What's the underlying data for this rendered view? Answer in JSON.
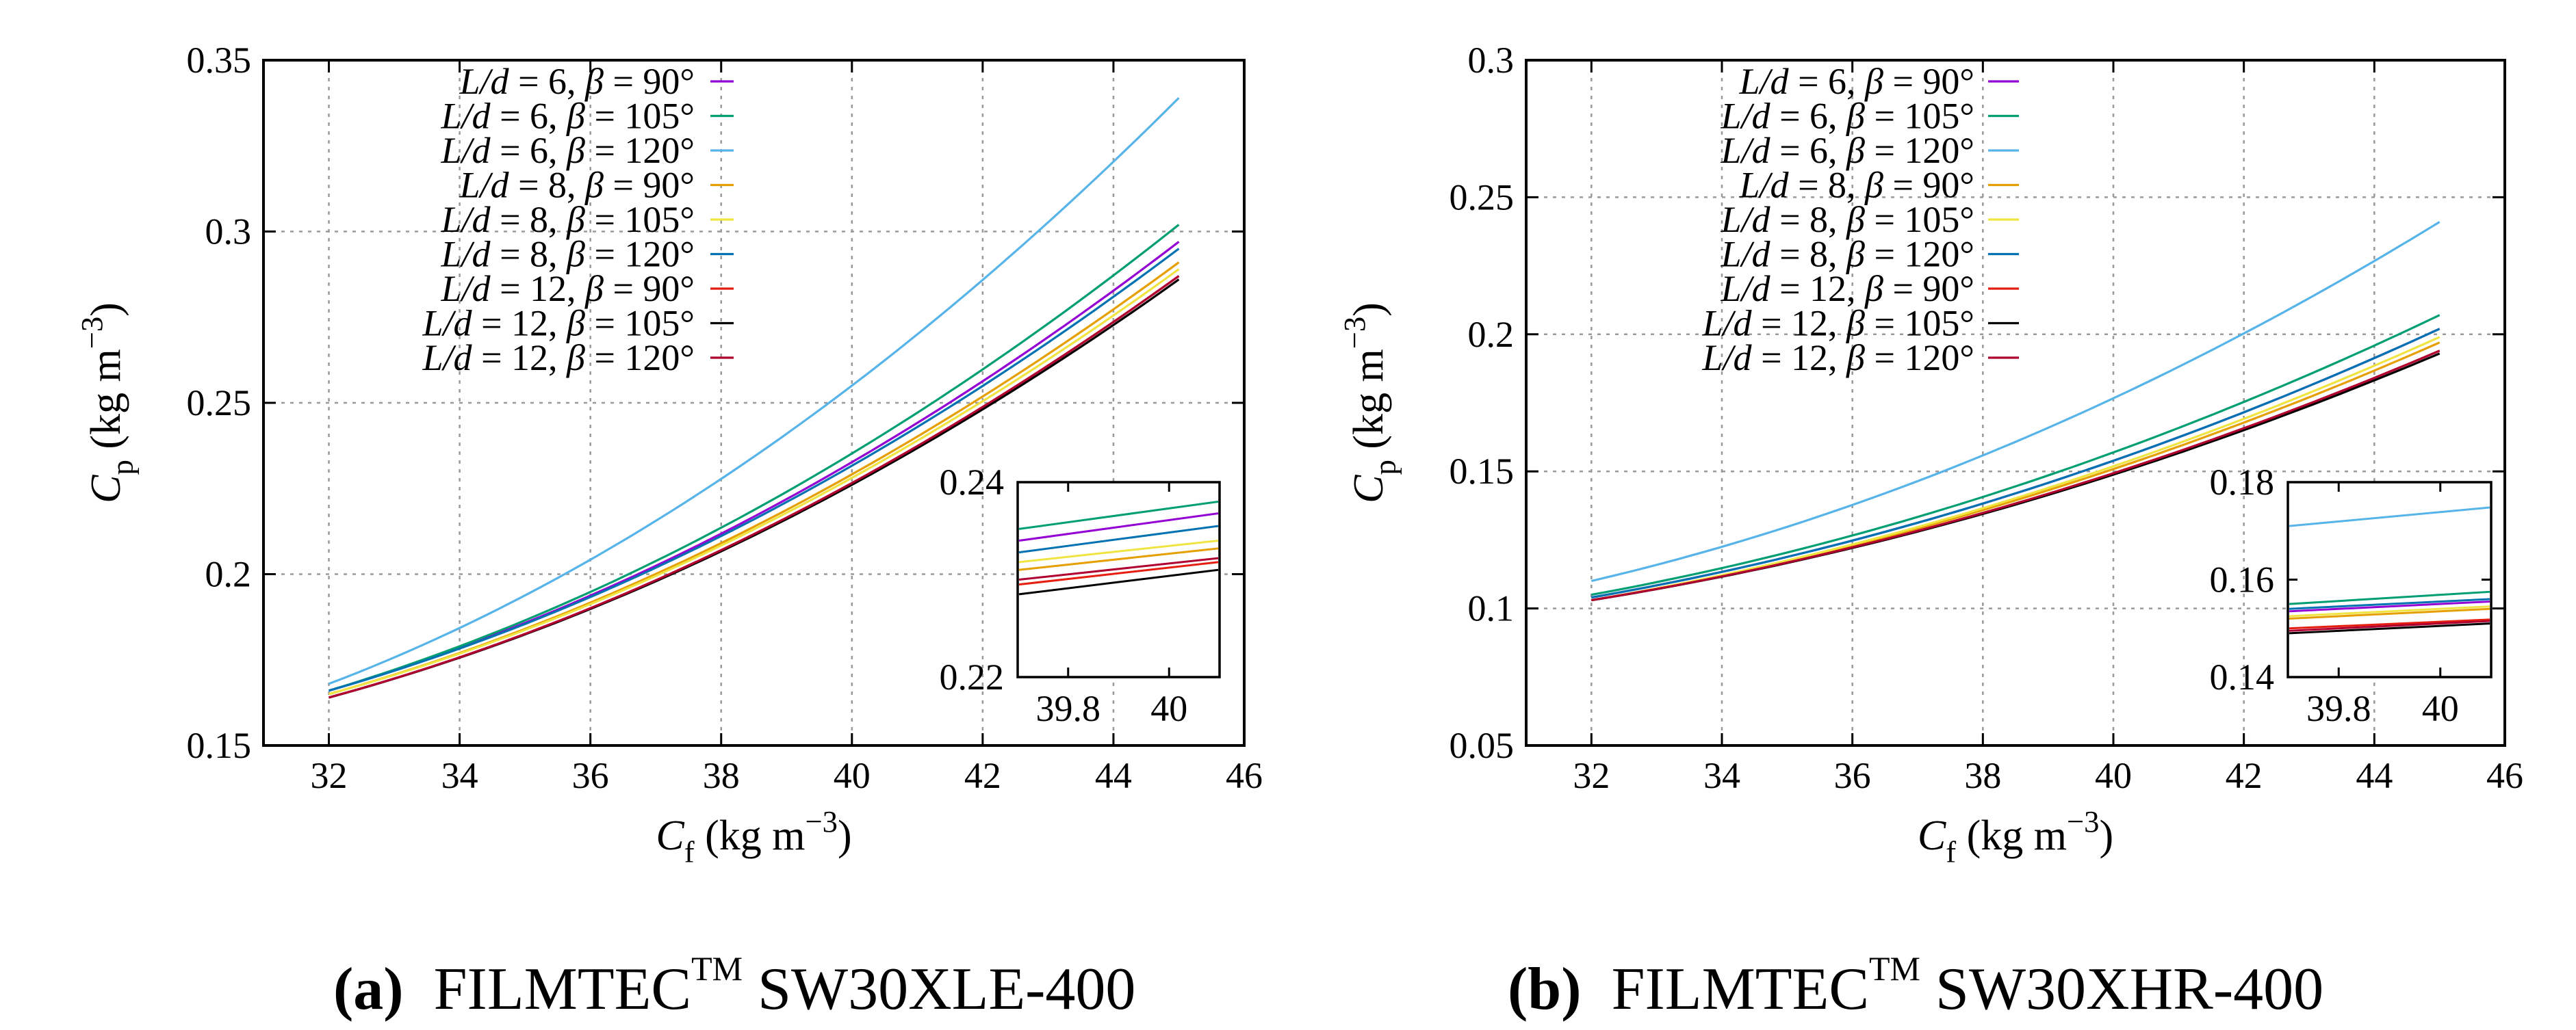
{
  "legend_labels": [
    "L/d = 6, β = 90°",
    "L/d = 6, β = 105°",
    "L/d = 6, β = 120°",
    "L/d = 8, β = 90°",
    "L/d = 8, β = 105°",
    "L/d = 8, β = 120°",
    "L/d = 12, β = 90°",
    "L/d = 12, β = 105°",
    "L/d = 12, β = 120°"
  ],
  "colors": [
    "#9400d3",
    "#009e73",
    "#56b4e9",
    "#e69f00",
    "#f0e442",
    "#0072b2",
    "#e51e10",
    "#000000",
    "#b00030"
  ],
  "captions": {
    "a": {
      "label": "(a)",
      "brand": "FILMTEC",
      "tm": "TM",
      "model": "SW30XLE-400"
    },
    "b": {
      "label": "(b)",
      "brand": "FILMTEC",
      "tm": "TM",
      "model": "SW30XHR-400"
    }
  },
  "chart_data": [
    {
      "type": "line",
      "id": "a",
      "xlabel": {
        "main": "C",
        "sub": "f",
        "unit": " (kg m",
        "sup": "−3",
        "close": ")"
      },
      "ylabel": {
        "main": "C",
        "sub": "p",
        "unit": " (kg m",
        "sup": "−3",
        "close": ")"
      },
      "xlim": [
        31,
        46
      ],
      "ylim": [
        0.15,
        0.35
      ],
      "xticks": [
        32,
        34,
        36,
        38,
        40,
        42,
        44,
        46
      ],
      "yticks": [
        0.15,
        0.2,
        0.25,
        0.3,
        0.35
      ],
      "ytick_labels": [
        "0.15",
        "0.2",
        "0.25",
        "0.3",
        "0.35"
      ],
      "grid": true,
      "legend_position": "top-center",
      "series_x": [
        32,
        45
      ],
      "series": [
        {
          "name": "L/d = 6, β = 90°",
          "y_start": 0.166,
          "y_end": 0.297
        },
        {
          "name": "L/d = 6, β = 105°",
          "y_start": 0.166,
          "y_end": 0.302
        },
        {
          "name": "L/d = 6, β = 120°",
          "y_start": 0.168,
          "y_end": 0.339
        },
        {
          "name": "L/d = 8, β = 90°",
          "y_start": 0.165,
          "y_end": 0.291
        },
        {
          "name": "L/d = 8, β = 105°",
          "y_start": 0.165,
          "y_end": 0.289
        },
        {
          "name": "L/d = 8, β = 120°",
          "y_start": 0.166,
          "y_end": 0.295
        },
        {
          "name": "L/d = 12, β = 90°",
          "y_start": 0.164,
          "y_end": 0.287
        },
        {
          "name": "L/d = 12, β = 105°",
          "y_start": 0.164,
          "y_end": 0.286
        },
        {
          "name": "L/d = 12, β = 120°",
          "y_start": 0.164,
          "y_end": 0.287
        }
      ],
      "inset": {
        "xlim": [
          39.7,
          40.1
        ],
        "ylim": [
          0.22,
          0.24
        ],
        "xticks": [
          39.8,
          40
        ],
        "xtick_labels": [
          "39.8",
          "40"
        ],
        "yticks": [
          0.22,
          0.24
        ],
        "ytick_labels": [
          "0.22",
          "0.24"
        ],
        "values_left": [
          0.234,
          0.2352,
          null,
          0.231,
          0.2318,
          0.2328,
          0.2295,
          0.2285,
          0.23
        ],
        "values_right": [
          0.2368,
          0.238,
          null,
          0.2332,
          0.234,
          0.2355,
          0.2318,
          0.231,
          0.2322
        ]
      }
    },
    {
      "type": "line",
      "id": "b",
      "xlabel": {
        "main": "C",
        "sub": "f",
        "unit": " (kg m",
        "sup": "−3",
        "close": ")"
      },
      "ylabel": {
        "main": "C",
        "sub": "p",
        "unit": " (kg m",
        "sup": "−3",
        "close": ")"
      },
      "xlim": [
        31,
        46
      ],
      "ylim": [
        0.05,
        0.3
      ],
      "xticks": [
        32,
        34,
        36,
        38,
        40,
        42,
        44,
        46
      ],
      "yticks": [
        0.05,
        0.1,
        0.15,
        0.2,
        0.25,
        0.3
      ],
      "ytick_labels": [
        "0.05",
        "0.1",
        "0.15",
        "0.2",
        "0.25",
        "0.3"
      ],
      "grid": true,
      "legend_position": "top-center",
      "series_x": [
        32,
        45
      ],
      "series": [
        {
          "name": "L/d = 6, β = 90°",
          "y_start": 0.104,
          "y_end": 0.202
        },
        {
          "name": "L/d = 6, β = 105°",
          "y_start": 0.105,
          "y_end": 0.207
        },
        {
          "name": "L/d = 6, β = 120°",
          "y_start": 0.11,
          "y_end": 0.241
        },
        {
          "name": "L/d = 8, β = 90°",
          "y_start": 0.103,
          "y_end": 0.197
        },
        {
          "name": "L/d = 8, β = 105°",
          "y_start": 0.103,
          "y_end": 0.199
        },
        {
          "name": "L/d = 8, β = 120°",
          "y_start": 0.104,
          "y_end": 0.202
        },
        {
          "name": "L/d = 12, β = 90°",
          "y_start": 0.103,
          "y_end": 0.194
        },
        {
          "name": "L/d = 12, β = 105°",
          "y_start": 0.103,
          "y_end": 0.193
        },
        {
          "name": "L/d = 12, β = 120°",
          "y_start": 0.103,
          "y_end": 0.194
        }
      ],
      "inset": {
        "xlim": [
          39.7,
          40.1
        ],
        "ylim": [
          0.14,
          0.18
        ],
        "xticks": [
          39.8,
          40
        ],
        "xtick_labels": [
          "39.8",
          "40"
        ],
        "yticks": [
          0.14,
          0.16,
          0.18
        ],
        "ytick_labels": [
          "0.14",
          "0.16",
          "0.18"
        ],
        "values_left": [
          0.1535,
          0.155,
          0.171,
          0.152,
          0.1525,
          0.154,
          0.15,
          0.149,
          0.1495
        ],
        "values_right": [
          0.1555,
          0.1575,
          0.1748,
          0.154,
          0.1545,
          0.156,
          0.1518,
          0.151,
          0.1515
        ]
      }
    }
  ]
}
